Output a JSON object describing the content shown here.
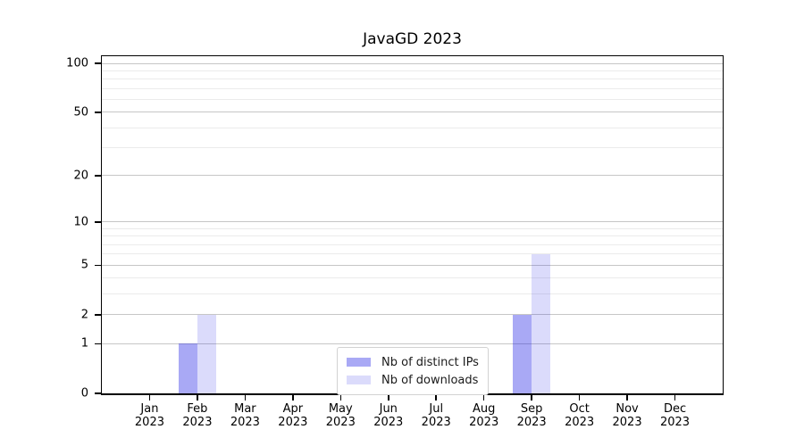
{
  "chart_data": {
    "type": "bar",
    "title": "JavaGD 2023",
    "categories": [
      "Jan",
      "Feb",
      "Mar",
      "Apr",
      "May",
      "Jun",
      "Jul",
      "Aug",
      "Sep",
      "Oct",
      "Nov",
      "Dec"
    ],
    "year_label": "2023",
    "series": [
      {
        "name": "Nb of distinct IPs",
        "color": "rgba(30,30,230,0.38)",
        "values": [
          0,
          1,
          0,
          0,
          0,
          0,
          0,
          0,
          2,
          0,
          0,
          0
        ]
      },
      {
        "name": "Nb of downloads",
        "color": "rgba(30,30,230,0.16)",
        "values": [
          0,
          2,
          0,
          0,
          0,
          0,
          0,
          0,
          6,
          0,
          0,
          0
        ]
      }
    ],
    "y_axis": {
      "scale": "log1p",
      "ticks": [
        0,
        1,
        2,
        5,
        10,
        20,
        50,
        100
      ],
      "minor_ticks": [
        3,
        4,
        6,
        7,
        8,
        9,
        30,
        40,
        60,
        70,
        80,
        90
      ],
      "max": 100
    },
    "grid": {
      "major_color": "#c6c6c6",
      "minor_color": "#ebebeb",
      "orientation": "horizontal"
    },
    "legend_position": "bottom-center",
    "axis_color": "#000000"
  }
}
